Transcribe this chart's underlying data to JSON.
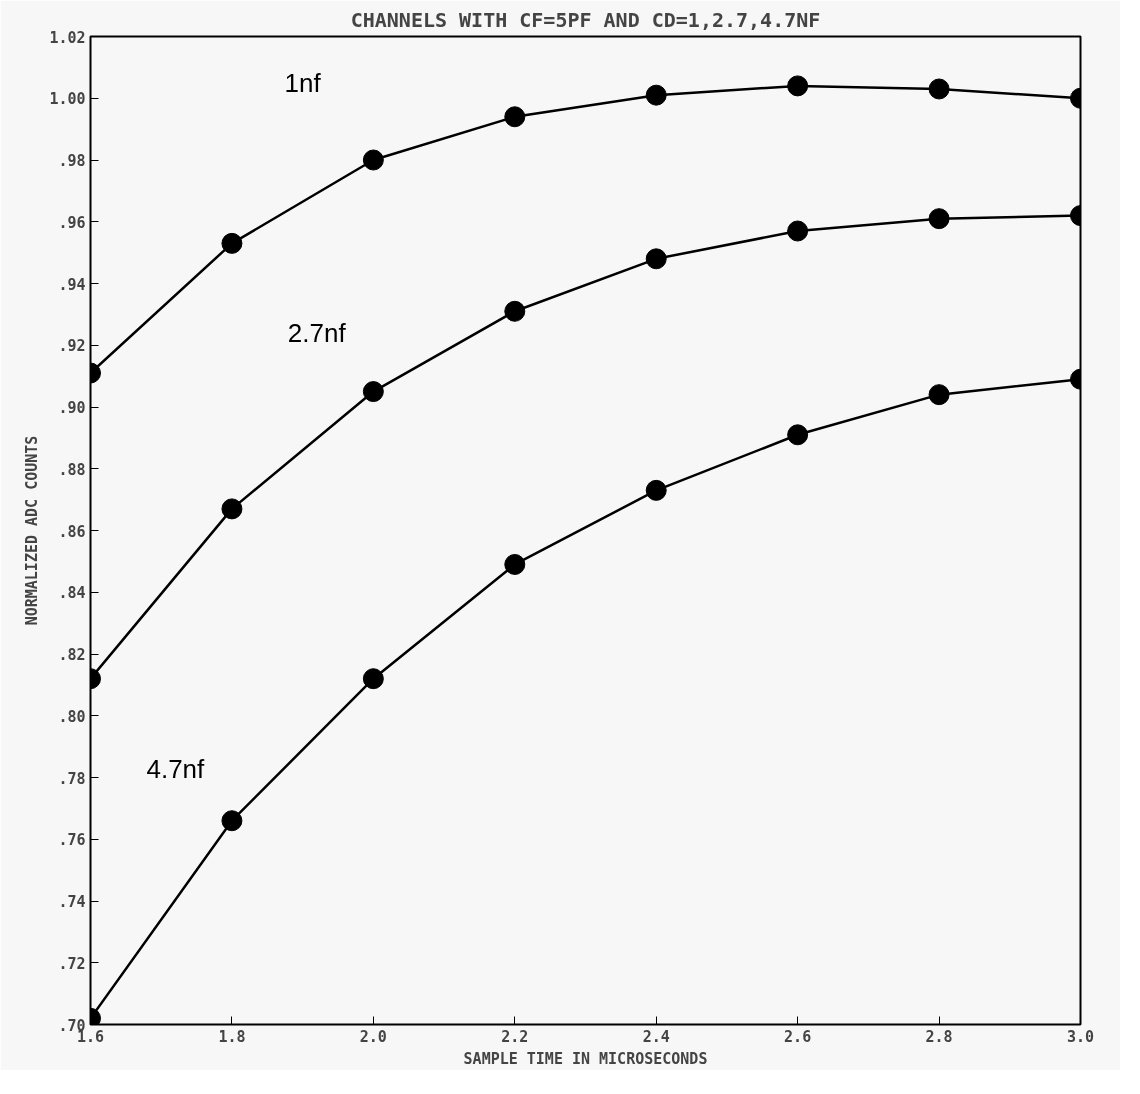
{
  "chart_data": {
    "type": "line",
    "title": "CHANNELS WITH CF=5PF AND CD=1,2.7,4.7NF",
    "xlabel": "SAMPLE TIME IN MICROSECONDS",
    "ylabel": "NORMALIZED ADC COUNTS",
    "x": [
      1.6,
      1.8,
      2.0,
      2.2,
      2.4,
      2.6,
      2.8,
      3.0
    ],
    "series": [
      {
        "name": "1nf",
        "color": "#000000",
        "values": [
          0.911,
          0.953,
          0.98,
          0.994,
          1.001,
          1.004,
          1.003,
          1.0
        ]
      },
      {
        "name": "2.7nf",
        "color": "#000000",
        "values": [
          0.812,
          0.867,
          0.905,
          0.931,
          0.948,
          0.957,
          0.961,
          0.962
        ]
      },
      {
        "name": "4.7nf",
        "color": "#000000",
        "values": [
          0.702,
          0.766,
          0.812,
          0.849,
          0.873,
          0.891,
          0.904,
          0.909
        ]
      }
    ],
    "xlim": [
      1.6,
      3.0
    ],
    "ylim": [
      0.7,
      1.02
    ],
    "xticks": [
      1.6,
      1.8,
      {
        "value": 2.0,
        "label": "2.0"
      },
      2.2,
      2.4,
      2.6,
      2.8,
      {
        "value": 3.0,
        "label": "3.0"
      }
    ],
    "yticks": [
      {
        "value": 0.7,
        "label": ".70"
      },
      {
        "value": 0.72,
        "label": ".72"
      },
      {
        "value": 0.74,
        "label": ".74"
      },
      {
        "value": 0.76,
        "label": ".76"
      },
      {
        "value": 0.78,
        "label": ".78"
      },
      {
        "value": 0.8,
        "label": ".80"
      },
      {
        "value": 0.82,
        "label": ".82"
      },
      {
        "value": 0.84,
        "label": ".84"
      },
      {
        "value": 0.86,
        "label": ".86"
      },
      {
        "value": 0.88,
        "label": ".88"
      },
      {
        "value": 0.9,
        "label": ".90"
      },
      {
        "value": 0.92,
        "label": ".92"
      },
      {
        "value": 0.94,
        "label": ".94"
      },
      {
        "value": 0.96,
        "label": ".96"
      },
      {
        "value": 0.98,
        "label": ".98"
      },
      {
        "value": 1.0,
        "label": "1.00"
      },
      {
        "value": 1.02,
        "label": "1.02"
      }
    ],
    "grid": false,
    "marker": "circle",
    "line_style": "solid"
  }
}
